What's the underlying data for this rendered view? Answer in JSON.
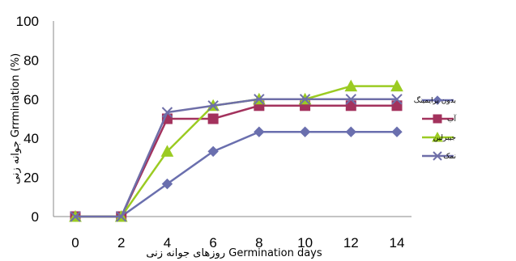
{
  "chart_data": {
    "type": "line",
    "x": [
      0,
      2,
      4,
      6,
      8,
      10,
      12,
      14
    ],
    "xlim": [
      0,
      14
    ],
    "ylim": [
      0,
      100
    ],
    "yticks": [
      0,
      20,
      40,
      60,
      80,
      100
    ],
    "xlabel": "روزهای جوانه زنی Germination days",
    "ylabel": "جوانه زنی Grrmination (%)",
    "grid": false,
    "legend_position": "right",
    "series": [
      {
        "name": "بدون پرایمینگ",
        "color": "#6A6FAE",
        "marker": "diamond",
        "values": [
          0,
          0,
          16.7,
          33.3,
          43.3,
          43.3,
          43.3,
          43.3
        ]
      },
      {
        "name": "آب",
        "color": "#A3325D",
        "marker": "square",
        "values": [
          0,
          0,
          50,
          50,
          56.7,
          56.7,
          56.7,
          56.7
        ]
      },
      {
        "name": "جیبرلین",
        "color": "#9BCB22",
        "marker": "triangle",
        "values": [
          0,
          0,
          33.3,
          56.7,
          60,
          60,
          66.7,
          66.7
        ]
      },
      {
        "name": "نمک",
        "color": "#6E6EA8",
        "marker": "x",
        "values": [
          0,
          0,
          53.3,
          56.7,
          60,
          60,
          60,
          60
        ]
      }
    ]
  }
}
